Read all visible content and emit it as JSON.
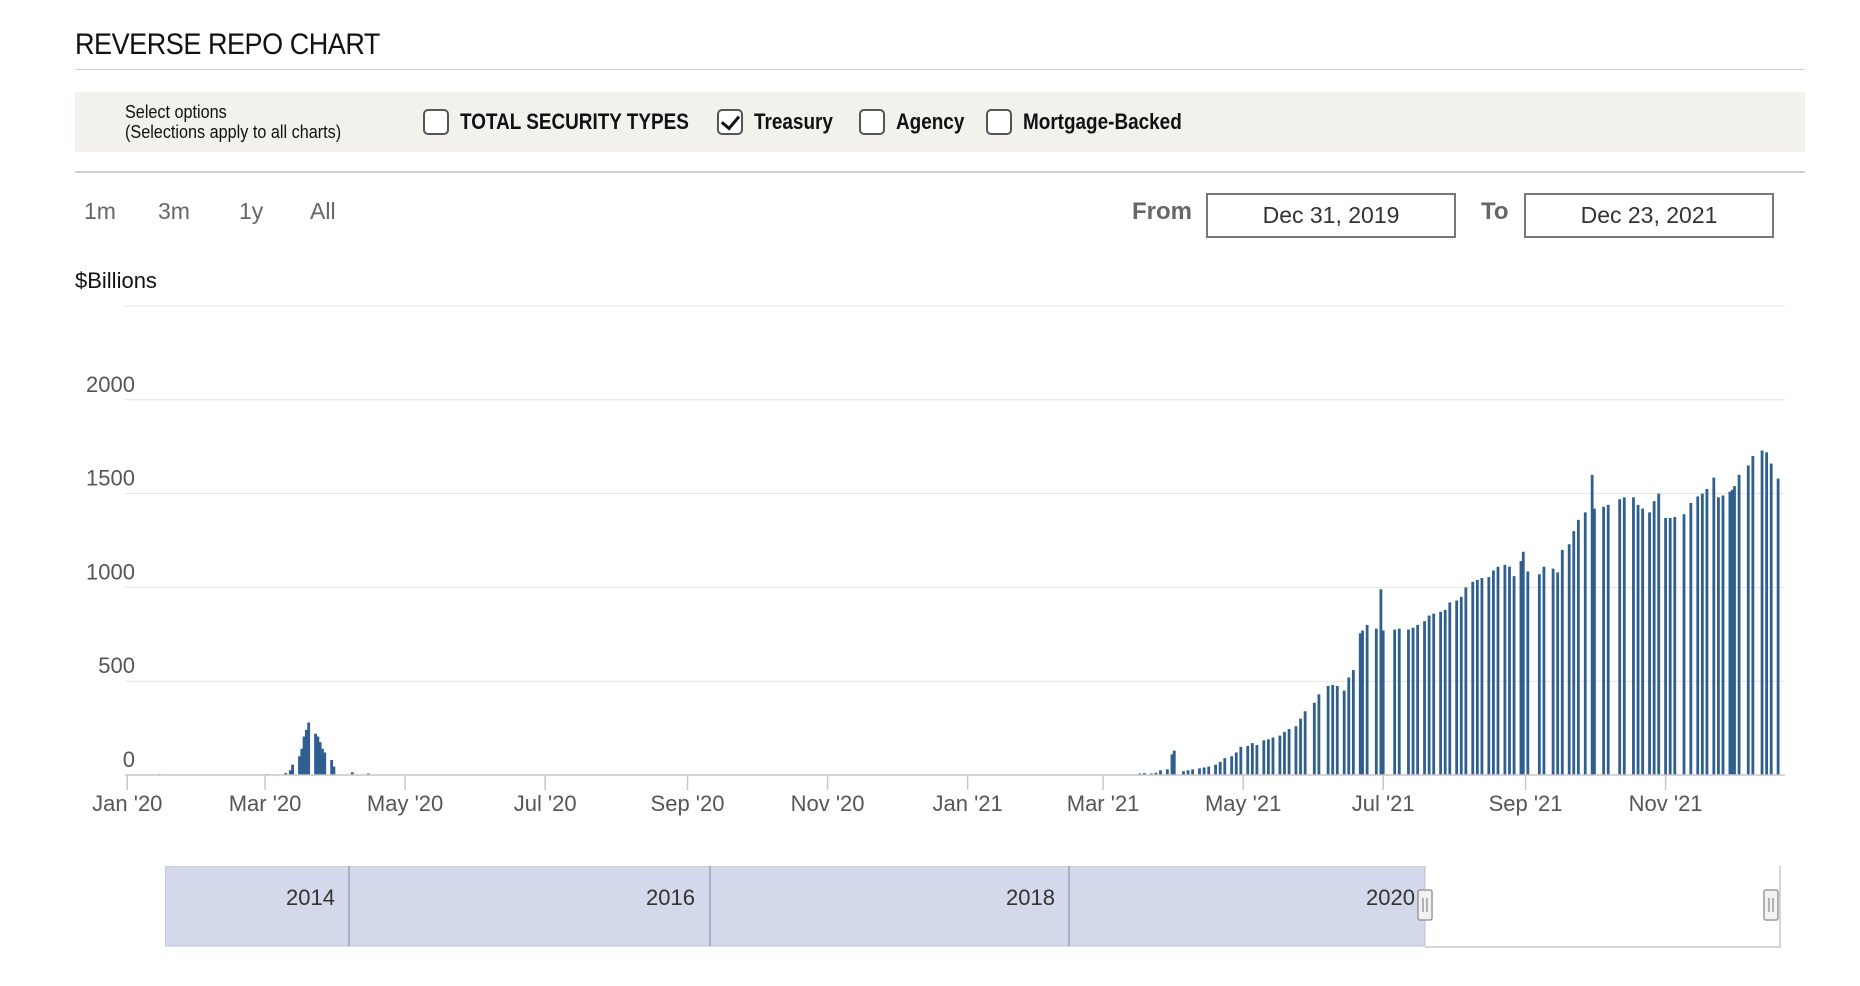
{
  "page_title": "REVERSE REPO CHART",
  "options": {
    "label_line1": "Select options",
    "label_line2": "(Selections apply to all charts)",
    "checkboxes": [
      {
        "label": "TOTAL SECURITY TYPES",
        "checked": false
      },
      {
        "label": "Treasury",
        "checked": true
      },
      {
        "label": "Agency",
        "checked": false
      },
      {
        "label": "Mortgage-Backed",
        "checked": false
      }
    ]
  },
  "range_buttons": [
    "1m",
    "3m",
    "1y",
    "All"
  ],
  "date_range": {
    "from_label": "From",
    "from_value": "Dec 31, 2019",
    "to_label": "To",
    "to_value": "Dec 23, 2021"
  },
  "colors": {
    "bar": "#2f5f8f",
    "navigator_fill": "#d3d9ea",
    "grid": "#e3e3e3"
  },
  "chart_data": {
    "type": "bar",
    "ylabel": "$Billions",
    "ylim": [
      0,
      2500
    ],
    "yticks": [
      0,
      500,
      1000,
      1500,
      2000
    ],
    "x_start": "2019-12-31",
    "x_end": "2021-12-23",
    "x_ticks": [
      {
        "label": "Jan '20",
        "date": "2020-01-01"
      },
      {
        "label": "Mar '20",
        "date": "2020-03-01"
      },
      {
        "label": "May '20",
        "date": "2020-05-01"
      },
      {
        "label": "Jul '20",
        "date": "2020-07-01"
      },
      {
        "label": "Sep '20",
        "date": "2020-09-01"
      },
      {
        "label": "Nov '20",
        "date": "2020-11-01"
      },
      {
        "label": "Jan '21",
        "date": "2021-01-01"
      },
      {
        "label": "Mar '21",
        "date": "2021-03-01"
      },
      {
        "label": "May '21",
        "date": "2021-05-01"
      },
      {
        "label": "Jul '21",
        "date": "2021-07-01"
      },
      {
        "label": "Sep '21",
        "date": "2021-09-01"
      },
      {
        "label": "Nov '21",
        "date": "2021-11-01"
      }
    ],
    "series": [
      {
        "points": [
          [
            "2020-01-15",
            5
          ],
          [
            "2020-03-02",
            5
          ],
          [
            "2020-03-10",
            10
          ],
          [
            "2020-03-12",
            25
          ],
          [
            "2020-03-13",
            55
          ],
          [
            "2020-03-16",
            100
          ],
          [
            "2020-03-17",
            140
          ],
          [
            "2020-03-18",
            205
          ],
          [
            "2020-03-19",
            240
          ],
          [
            "2020-03-20",
            280
          ],
          [
            "2020-03-23",
            220
          ],
          [
            "2020-03-24",
            205
          ],
          [
            "2020-03-25",
            175
          ],
          [
            "2020-03-26",
            140
          ],
          [
            "2020-03-27",
            120
          ],
          [
            "2020-03-30",
            80
          ],
          [
            "2020-03-31",
            45
          ],
          [
            "2020-04-08",
            15
          ],
          [
            "2020-04-15",
            8
          ],
          [
            "2021-03-17",
            8
          ],
          [
            "2021-03-19",
            10
          ],
          [
            "2021-03-22",
            8
          ],
          [
            "2021-03-24",
            12
          ],
          [
            "2021-03-26",
            25
          ],
          [
            "2021-03-29",
            30
          ],
          [
            "2021-03-31",
            110
          ],
          [
            "2021-04-01",
            130
          ],
          [
            "2021-04-05",
            20
          ],
          [
            "2021-04-07",
            25
          ],
          [
            "2021-04-09",
            30
          ],
          [
            "2021-04-12",
            35
          ],
          [
            "2021-04-14",
            40
          ],
          [
            "2021-04-16",
            45
          ],
          [
            "2021-04-19",
            55
          ],
          [
            "2021-04-21",
            70
          ],
          [
            "2021-04-23",
            90
          ],
          [
            "2021-04-26",
            100
          ],
          [
            "2021-04-28",
            120
          ],
          [
            "2021-04-30",
            150
          ],
          [
            "2021-05-03",
            155
          ],
          [
            "2021-05-05",
            170
          ],
          [
            "2021-05-07",
            160
          ],
          [
            "2021-05-10",
            185
          ],
          [
            "2021-05-12",
            190
          ],
          [
            "2021-05-14",
            200
          ],
          [
            "2021-05-17",
            210
          ],
          [
            "2021-05-19",
            230
          ],
          [
            "2021-05-21",
            245
          ],
          [
            "2021-05-24",
            260
          ],
          [
            "2021-05-26",
            300
          ],
          [
            "2021-05-28",
            340
          ],
          [
            "2021-06-01",
            385
          ],
          [
            "2021-06-03",
            430
          ],
          [
            "2021-06-07",
            475
          ],
          [
            "2021-06-09",
            480
          ],
          [
            "2021-06-11",
            475
          ],
          [
            "2021-06-14",
            450
          ],
          [
            "2021-06-16",
            520
          ],
          [
            "2021-06-18",
            560
          ],
          [
            "2021-06-21",
            755
          ],
          [
            "2021-06-22",
            770
          ],
          [
            "2021-06-24",
            800
          ],
          [
            "2021-06-28",
            780
          ],
          [
            "2021-06-30",
            990
          ],
          [
            "2021-07-01",
            770
          ],
          [
            "2021-07-06",
            775
          ],
          [
            "2021-07-08",
            780
          ],
          [
            "2021-07-12",
            775
          ],
          [
            "2021-07-14",
            785
          ],
          [
            "2021-07-16",
            800
          ],
          [
            "2021-07-19",
            820
          ],
          [
            "2021-07-21",
            850
          ],
          [
            "2021-07-23",
            860
          ],
          [
            "2021-07-26",
            870
          ],
          [
            "2021-07-28",
            880
          ],
          [
            "2021-07-30",
            920
          ],
          [
            "2021-08-02",
            930
          ],
          [
            "2021-08-04",
            950
          ],
          [
            "2021-08-06",
            1000
          ],
          [
            "2021-08-09",
            1030
          ],
          [
            "2021-08-11",
            1040
          ],
          [
            "2021-08-13",
            1050
          ],
          [
            "2021-08-16",
            1055
          ],
          [
            "2021-08-18",
            1090
          ],
          [
            "2021-08-20",
            1110
          ],
          [
            "2021-08-23",
            1120
          ],
          [
            "2021-08-25",
            1110
          ],
          [
            "2021-08-27",
            1060
          ],
          [
            "2021-08-30",
            1140
          ],
          [
            "2021-08-31",
            1190
          ],
          [
            "2021-09-02",
            1085
          ],
          [
            "2021-09-07",
            1070
          ],
          [
            "2021-09-09",
            1110
          ],
          [
            "2021-09-13",
            1100
          ],
          [
            "2021-09-15",
            1080
          ],
          [
            "2021-09-17",
            1200
          ],
          [
            "2021-09-20",
            1230
          ],
          [
            "2021-09-22",
            1300
          ],
          [
            "2021-09-24",
            1360
          ],
          [
            "2021-09-27",
            1400
          ],
          [
            "2021-09-30",
            1600
          ],
          [
            "2021-10-01",
            1420
          ],
          [
            "2021-10-05",
            1430
          ],
          [
            "2021-10-07",
            1440
          ],
          [
            "2021-10-12",
            1470
          ],
          [
            "2021-10-14",
            1480
          ],
          [
            "2021-10-18",
            1480
          ],
          [
            "2021-10-20",
            1440
          ],
          [
            "2021-10-22",
            1420
          ],
          [
            "2021-10-25",
            1400
          ],
          [
            "2021-10-27",
            1460
          ],
          [
            "2021-10-29",
            1500
          ],
          [
            "2021-11-01",
            1370
          ],
          [
            "2021-11-03",
            1370
          ],
          [
            "2021-11-05",
            1375
          ],
          [
            "2021-11-09",
            1390
          ],
          [
            "2021-11-12",
            1450
          ],
          [
            "2021-11-15",
            1485
          ],
          [
            "2021-11-17",
            1500
          ],
          [
            "2021-11-19",
            1525
          ],
          [
            "2021-11-22",
            1585
          ],
          [
            "2021-11-24",
            1480
          ],
          [
            "2021-11-26",
            1490
          ],
          [
            "2021-11-29",
            1510
          ],
          [
            "2021-11-30",
            1520
          ],
          [
            "2021-12-01",
            1540
          ],
          [
            "2021-12-03",
            1600
          ],
          [
            "2021-12-07",
            1650
          ],
          [
            "2021-12-09",
            1700
          ],
          [
            "2021-12-13",
            1730
          ],
          [
            "2021-12-15",
            1720
          ],
          [
            "2021-12-17",
            1660
          ],
          [
            "2021-12-20",
            1580
          ]
        ]
      }
    ]
  },
  "navigator": {
    "year_labels": [
      "2014",
      "2016",
      "2018",
      "2020"
    ]
  }
}
